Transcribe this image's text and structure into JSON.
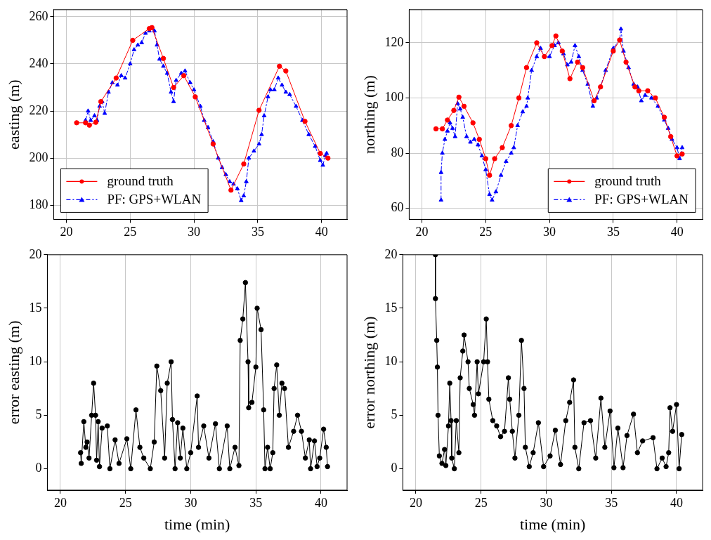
{
  "chart_data": [
    {
      "type": "line",
      "ylabel": "easting (m)",
      "xlim": [
        19,
        42
      ],
      "ylim": [
        174,
        263
      ],
      "xticks": [
        20,
        25,
        30,
        35,
        40
      ],
      "yticks": [
        180,
        200,
        220,
        240,
        260
      ],
      "grid": true,
      "legend": "bottom left",
      "series": [
        {
          "name": "ground truth",
          "color": "#ff0000",
          "marker": "circle",
          "line_style": "solid",
          "x": [
            20.8,
            21.5,
            21.8,
            22.3,
            22.7,
            23.9,
            25.2,
            26.5,
            26.7,
            27.6,
            28.4,
            29.2,
            30.1,
            31.5,
            32.9,
            33.9,
            35.1,
            36.7,
            37.2,
            38.7,
            39.9,
            40.5
          ],
          "values": [
            215,
            215,
            214,
            215.2,
            224,
            234,
            250,
            255,
            255.4,
            242.3,
            230,
            235,
            226,
            206,
            186.4,
            197.5,
            220.3,
            239,
            237,
            215.6,
            202,
            200
          ]
        },
        {
          "name": "PF: GPS+WLAN",
          "color": "#0000ff",
          "marker": "triangle",
          "line_style": "dashdot",
          "x": [
            21.5,
            21.7,
            21.9,
            22.2,
            22.4,
            22.6,
            22.8,
            23.0,
            23.3,
            23.6,
            24.0,
            24.3,
            24.6,
            25.0,
            25.3,
            25.6,
            25.9,
            26.2,
            26.5,
            26.7,
            26.9,
            27.1,
            27.3,
            27.6,
            27.9,
            28.2,
            28.4,
            28.6,
            29.0,
            29.3,
            29.7,
            30.0,
            30.5,
            30.8,
            31.1,
            31.5,
            31.9,
            32.2,
            32.5,
            32.8,
            33.1,
            33.4,
            33.7,
            33.9,
            34.1,
            34.3,
            34.7,
            35.1,
            35.3,
            35.5,
            35.8,
            36.0,
            36.3,
            36.6,
            36.9,
            37.2,
            37.5,
            38.0,
            38.5,
            39.0,
            39.5,
            39.9,
            40.1,
            40.3,
            40.4
          ],
          "values": [
            216,
            220,
            216,
            218,
            216,
            222,
            224,
            219,
            228,
            232,
            231,
            235,
            234,
            240,
            246,
            248,
            249,
            253,
            254,
            255,
            254,
            248,
            242,
            239,
            236,
            228,
            224,
            233,
            236,
            237,
            232,
            229,
            222,
            216,
            213,
            207,
            200,
            196,
            193,
            190,
            189,
            187,
            182,
            184,
            190,
            200,
            203,
            206,
            210,
            218,
            226,
            229,
            229,
            234,
            231,
            228,
            227,
            222,
            216,
            210,
            205,
            199,
            197,
            201,
            202
          ]
        }
      ]
    },
    {
      "type": "line",
      "ylabel": "northing (m)",
      "xlim": [
        19,
        42
      ],
      "ylim": [
        56,
        132
      ],
      "xticks": [
        20,
        25,
        30,
        35,
        40
      ],
      "yticks": [
        60,
        80,
        100,
        120
      ],
      "grid": true,
      "legend": "bottom right",
      "series": [
        {
          "name": "ground truth",
          "color": "#ff0000",
          "marker": "circle",
          "line_style": "solid",
          "x": [
            21.1,
            21.6,
            22.0,
            22.5,
            22.9,
            23.3,
            24.0,
            24.5,
            25.0,
            25.3,
            25.7,
            26.3,
            27.0,
            27.6,
            28.2,
            29.0,
            29.6,
            30.2,
            30.5,
            31.0,
            31.6,
            32.2,
            32.6,
            33.5,
            34.0,
            35.0,
            35.5,
            36.0,
            36.7,
            37.0,
            37.7,
            38.3,
            39.0,
            39.5,
            40.0,
            40.4
          ],
          "values": [
            88.8,
            88.8,
            92,
            95.5,
            100.3,
            97,
            91,
            85,
            78,
            72,
            78,
            82,
            90,
            100,
            111,
            120,
            115,
            119,
            122.5,
            117,
            107,
            113,
            111,
            99,
            104,
            117,
            121,
            113,
            104,
            102.6,
            102.6,
            100,
            93,
            86,
            79,
            79.7
          ]
        },
        {
          "name": "PF: GPS+WLAN",
          "color": "#0000ff",
          "marker": "triangle",
          "line_style": "dashdot",
          "x": [
            21.5,
            21.5,
            21.6,
            21.8,
            22.0,
            22.2,
            22.4,
            22.6,
            22.8,
            23.0,
            23.2,
            23.5,
            23.8,
            24.1,
            24.4,
            24.7,
            25.0,
            25.3,
            25.5,
            25.8,
            26.2,
            26.6,
            27.0,
            27.2,
            27.5,
            27.9,
            28.2,
            28.3,
            28.6,
            29.0,
            29.3,
            29.6,
            30.0,
            30.4,
            30.7,
            31.1,
            31.4,
            31.7,
            32.0,
            32.3,
            32.6,
            33.0,
            33.4,
            33.7,
            34.0,
            34.4,
            35.0,
            35.5,
            35.6,
            35.8,
            36.2,
            36.6,
            36.9,
            37.2,
            37.5,
            38.0,
            38.5,
            39.0,
            39.3,
            39.6,
            40.0,
            40.2,
            40.4
          ],
          "values": [
            63,
            73,
            80,
            85,
            88,
            91,
            89,
            86,
            98,
            96,
            93,
            86,
            84,
            85,
            83,
            79,
            74,
            65,
            63,
            66,
            72,
            77,
            80,
            82,
            90,
            95,
            97,
            100,
            110,
            115,
            118,
            115,
            115,
            119,
            120,
            116,
            112,
            113,
            119,
            115,
            110,
            105,
            97,
            100,
            104,
            110,
            118,
            121,
            125,
            117,
            111,
            105,
            104,
            99,
            101,
            100,
            97,
            92,
            89,
            85,
            82,
            78,
            82
          ]
        }
      ]
    },
    {
      "type": "line",
      "xlabel": "time (min)",
      "ylabel": "error easting (m)",
      "xlim": [
        19,
        42
      ],
      "ylim": [
        -2,
        20
      ],
      "xticks": [
        20,
        25,
        30,
        35,
        40
      ],
      "yticks": [
        0,
        5,
        10,
        15,
        20
      ],
      "grid": "x",
      "marker": "circle",
      "line_style": "solid",
      "series": [
        {
          "color": "#000000",
          "x": [
            21.55,
            21.6,
            21.8,
            21.95,
            22.05,
            22.2,
            22.4,
            22.55,
            22.7,
            22.78,
            22.9,
            23.0,
            23.2,
            23.6,
            23.8,
            24.2,
            24.5,
            25.1,
            25.4,
            25.8,
            26.1,
            26.4,
            26.9,
            27.2,
            27.4,
            27.7,
            28.0,
            28.2,
            28.5,
            28.6,
            28.8,
            29.0,
            29.2,
            29.4,
            29.7,
            30.0,
            30.5,
            30.6,
            31.0,
            31.4,
            31.9,
            32.2,
            32.8,
            33.0,
            33.4,
            33.7,
            33.8,
            34.0,
            34.2,
            34.4,
            34.45,
            34.7,
            35.0,
            35.1,
            35.4,
            35.6,
            35.7,
            35.9,
            36.1,
            36.3,
            36.4,
            36.6,
            36.8,
            37.0,
            37.2,
            37.5,
            37.9,
            38.2,
            38.5,
            38.8,
            39.1,
            39.2,
            39.5,
            39.7,
            39.9,
            40.2,
            40.4,
            40.5
          ],
          "values": [
            1.5,
            0.5,
            4.4,
            2,
            2.5,
            1,
            5,
            8,
            5,
            0.8,
            4.4,
            0.2,
            3.8,
            4,
            0,
            2.7,
            0.5,
            2.8,
            0,
            5.5,
            2,
            1,
            0,
            2.5,
            9.6,
            7.3,
            1,
            8,
            10,
            4.6,
            0,
            4.3,
            1,
            3.8,
            0,
            1.5,
            6.8,
            2,
            4,
            1,
            4.2,
            0,
            4,
            0,
            2,
            0.3,
            12,
            14,
            17.4,
            10,
            5.7,
            6.2,
            9.5,
            15,
            13,
            5.5,
            0,
            2,
            0,
            1.5,
            7.5,
            9.7,
            5,
            8,
            7.5,
            2,
            3.5,
            5,
            3.5,
            1,
            2.7,
            0,
            2.6,
            0.2,
            1,
            3.7,
            2,
            0.2
          ]
        }
      ]
    },
    {
      "type": "line",
      "xlabel": "time (min)",
      "ylabel": "error northing (m)",
      "xlim": [
        19,
        42
      ],
      "ylim": [
        -2,
        20
      ],
      "xticks": [
        20,
        25,
        30,
        35,
        40
      ],
      "yticks": [
        0,
        5,
        10,
        15,
        20
      ],
      "grid": "x",
      "marker": "circle",
      "line_style": "solid",
      "series": [
        {
          "color": "#000000",
          "x": [
            21.5,
            21.5,
            21.6,
            21.65,
            21.7,
            21.8,
            22.0,
            22.2,
            22.3,
            22.5,
            22.6,
            22.7,
            22.75,
            22.95,
            23.1,
            23.3,
            23.4,
            23.6,
            23.7,
            24.0,
            24.1,
            24.4,
            24.5,
            24.7,
            24.8,
            25.2,
            25.4,
            25.5,
            25.6,
            25.9,
            26.2,
            26.5,
            26.8,
            27.1,
            27.2,
            27.4,
            27.6,
            27.9,
            28.1,
            28.3,
            28.4,
            28.7,
            29.0,
            29.4,
            29.8,
            30.3,
            30.7,
            31.1,
            31.5,
            31.8,
            32.1,
            32.2,
            32.5,
            32.9,
            33.4,
            33.8,
            34.2,
            34.5,
            34.9,
            35.2,
            35.5,
            35.9,
            36.2,
            36.7,
            37.0,
            37.4,
            38.2,
            38.5,
            38.9,
            39.2,
            39.4,
            39.5,
            39.7,
            40.0,
            40.2,
            40.4
          ],
          "values": [
            20,
            15.9,
            12,
            9.5,
            5,
            1.2,
            0.5,
            1.8,
            0.3,
            4,
            8,
            4.5,
            1,
            0,
            4.5,
            1.5,
            8.5,
            11,
            12.5,
            10,
            7.5,
            6,
            5,
            10,
            7,
            10,
            14,
            10,
            6.5,
            4.5,
            4,
            3,
            3.5,
            8.5,
            6.5,
            3.5,
            1,
            5,
            12,
            7.5,
            2,
            0.2,
            1.5,
            4.3,
            0.2,
            1.2,
            3.6,
            0.4,
            4.5,
            6.2,
            8.3,
            2,
            0,
            4.3,
            4.5,
            1,
            6.6,
            2,
            5.4,
            0.1,
            3.8,
            0.1,
            3.1,
            5.1,
            1.5,
            2.6,
            2.9,
            0,
            1,
            0.2,
            1.5,
            5.7,
            3.5,
            6,
            0,
            3.2
          ]
        }
      ]
    }
  ]
}
